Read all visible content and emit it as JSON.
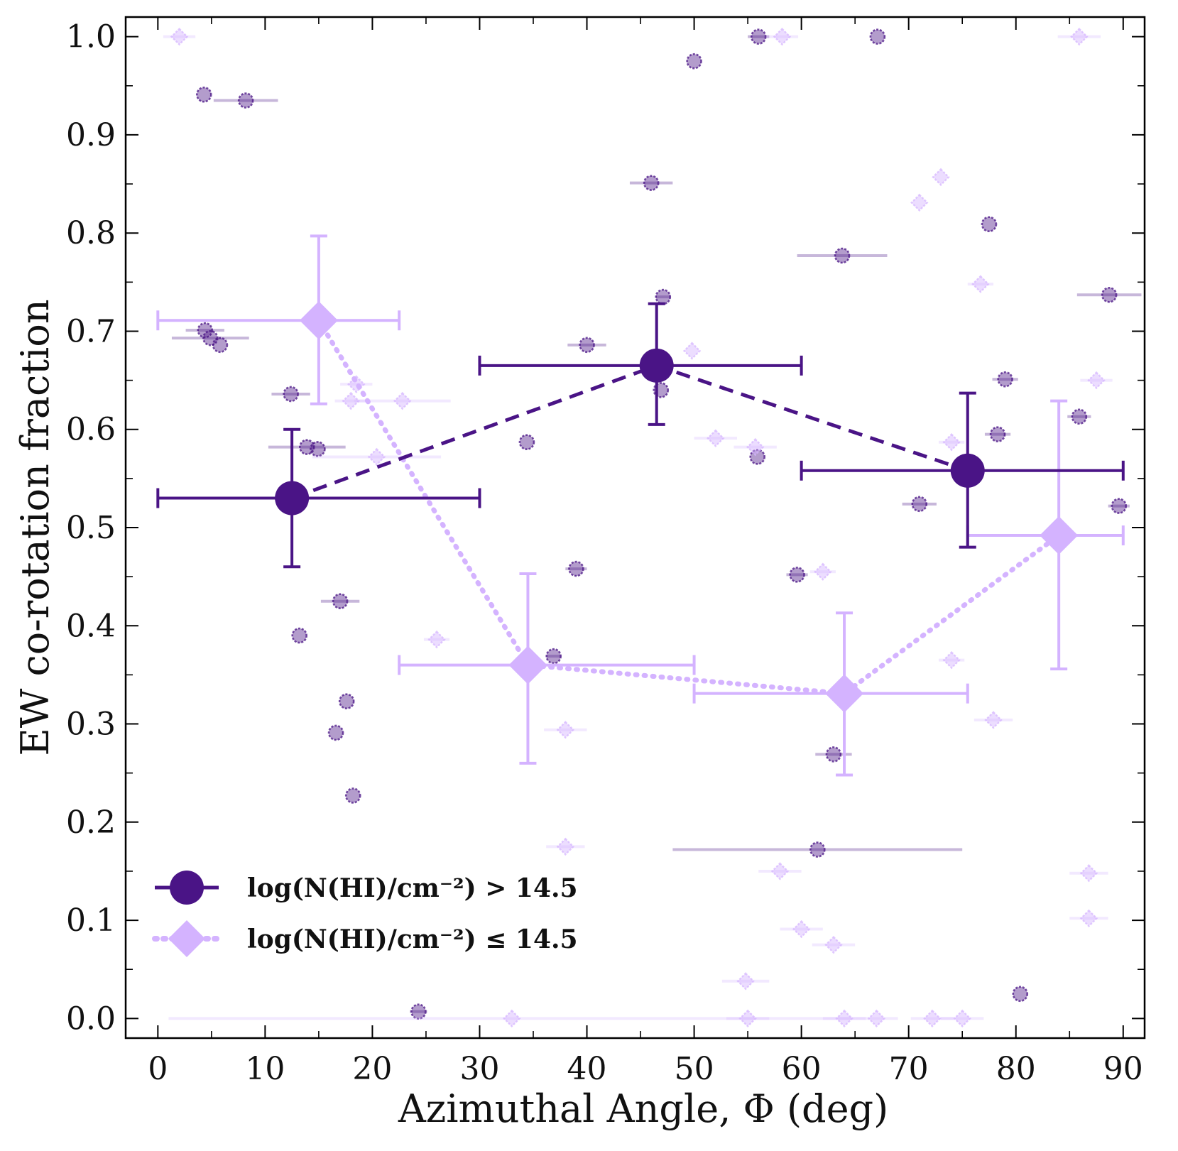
{
  "chart_data": {
    "type": "scatter",
    "xlabel": "Azimuthal Angle, Φ (deg)",
    "ylabel": "EW co-rotation fraction",
    "xlim": [
      -3,
      92
    ],
    "ylim": [
      -0.02,
      1.02
    ],
    "x_ticks": [
      0,
      10,
      20,
      30,
      40,
      50,
      60,
      70,
      80,
      90
    ],
    "x_tick_labels": [
      "0",
      "10",
      "20",
      "30",
      "40",
      "50",
      "60",
      "70",
      "80",
      "90"
    ],
    "y_ticks": [
      0.0,
      0.1,
      0.2,
      0.3,
      0.4,
      0.5,
      0.6,
      0.7,
      0.8,
      0.9,
      1.0
    ],
    "y_tick_labels": [
      "0.0",
      "0.1",
      "0.2",
      "0.3",
      "0.4",
      "0.5",
      "0.6",
      "0.7",
      "0.8",
      "0.9",
      "1.0"
    ],
    "legend_position": "lower-left",
    "colors": {
      "high": "#4a1486",
      "low": "#d4b3ff"
    },
    "series": [
      {
        "name": "high",
        "label": "log(N(HI)/cm⁻²) > 14.5",
        "marker": "circle",
        "line_style": "dashed",
        "binned": [
          {
            "x": 12.5,
            "xerr": [
              12.5,
              17.5
            ],
            "y": 0.53,
            "yerr": [
              0.07,
              0.07
            ]
          },
          {
            "x": 46.5,
            "xerr": [
              16.5,
              13.5
            ],
            "y": 0.665,
            "yerr": [
              0.06,
              0.063
            ]
          },
          {
            "x": 75.5,
            "xerr": [
              15.5,
              14.5
            ],
            "y": 0.558,
            "yerr": [
              0.078,
              0.079
            ]
          }
        ],
        "points": [
          {
            "x": 4.3,
            "y": 0.941,
            "xerr": 0
          },
          {
            "x": 8.2,
            "y": 0.935,
            "xerr": 3.0
          },
          {
            "x": 4.4,
            "y": 0.701,
            "xerr": 1.8
          },
          {
            "x": 4.9,
            "y": 0.693,
            "xerr": 3.6
          },
          {
            "x": 5.8,
            "y": 0.686,
            "xerr": 0
          },
          {
            "x": 12.4,
            "y": 0.636,
            "xerr": 1.8
          },
          {
            "x": 13.9,
            "y": 0.582,
            "xerr": 3.6
          },
          {
            "x": 14.9,
            "y": 0.58,
            "xerr": 0
          },
          {
            "x": 17.0,
            "y": 0.425,
            "xerr": 1.8
          },
          {
            "x": 13.2,
            "y": 0.39,
            "xerr": 0
          },
          {
            "x": 17.6,
            "y": 0.323,
            "xerr": 0
          },
          {
            "x": 16.6,
            "y": 0.291,
            "xerr": 0
          },
          {
            "x": 18.2,
            "y": 0.227,
            "xerr": 0
          },
          {
            "x": 24.3,
            "y": 0.007,
            "xerr": 0.8
          },
          {
            "x": 34.4,
            "y": 0.587,
            "xerr": 0
          },
          {
            "x": 40.0,
            "y": 0.686,
            "xerr": 1.8
          },
          {
            "x": 39.0,
            "y": 0.458,
            "xerr": 1.0
          },
          {
            "x": 36.9,
            "y": 0.369,
            "xerr": 0.7
          },
          {
            "x": 46.0,
            "y": 0.851,
            "xerr": 2.0
          },
          {
            "x": 47.1,
            "y": 0.735,
            "xerr": 0.7
          },
          {
            "x": 46.9,
            "y": 0.64,
            "xerr": 0
          },
          {
            "x": 50.0,
            "y": 0.975,
            "xerr": 0
          },
          {
            "x": 56.0,
            "y": 1.0,
            "xerr": 1.0
          },
          {
            "x": 67.1,
            "y": 1.0,
            "xerr": 0
          },
          {
            "x": 55.9,
            "y": 0.572,
            "xerr": 0
          },
          {
            "x": 59.6,
            "y": 0.452,
            "xerr": 1.0
          },
          {
            "x": 63.8,
            "y": 0.777,
            "xerr": 4.2
          },
          {
            "x": 71.0,
            "y": 0.524,
            "xerr": 1.6
          },
          {
            "x": 63.0,
            "y": 0.269,
            "xerr": 1.7
          },
          {
            "x": 61.5,
            "y": 0.172,
            "xerr": 13.5
          },
          {
            "x": 77.5,
            "y": 0.809,
            "xerr": 0
          },
          {
            "x": 79.0,
            "y": 0.651,
            "xerr": 1.2
          },
          {
            "x": 78.3,
            "y": 0.595,
            "xerr": 1.2
          },
          {
            "x": 80.4,
            "y": 0.025,
            "xerr": 0
          },
          {
            "x": 85.9,
            "y": 0.613,
            "xerr": 1.1
          },
          {
            "x": 88.7,
            "y": 0.737,
            "xerr": 3.0
          },
          {
            "x": 89.6,
            "y": 0.522,
            "xerr": 1.0
          }
        ]
      },
      {
        "name": "low",
        "label": "log(N(HI)/cm⁻²) ≤ 14.5",
        "marker": "diamond",
        "line_style": "dotted",
        "binned": [
          {
            "x": 15.0,
            "xerr": [
              15.0,
              7.5
            ],
            "y": 0.711,
            "yerr": [
              0.085,
              0.086
            ]
          },
          {
            "x": 34.5,
            "xerr": [
              12.0,
              15.5
            ],
            "y": 0.36,
            "yerr": [
              0.1,
              0.093
            ]
          },
          {
            "x": 64.0,
            "xerr": [
              14.0,
              11.5
            ],
            "y": 0.331,
            "yerr": [
              0.083,
              0.082
            ]
          },
          {
            "x": 84.0,
            "xerr": [
              8.5,
              6.0
            ],
            "y": 0.492,
            "yerr": [
              0.136,
              0.137
            ]
          }
        ],
        "points": [
          {
            "x": 2.0,
            "y": 1.0,
            "xerr": 1.5
          },
          {
            "x": 18.5,
            "y": 0.646,
            "xerr": 1.5
          },
          {
            "x": 18.0,
            "y": 0.629,
            "xerr": 1.5
          },
          {
            "x": 22.8,
            "y": 0.629,
            "xerr": 4.5
          },
          {
            "x": 20.4,
            "y": 0.572,
            "xerr": 6.0
          },
          {
            "x": 26.0,
            "y": 0.386,
            "xerr": 1.2
          },
          {
            "x": 33.0,
            "y": 0.0,
            "xerr": 32.0
          },
          {
            "x": 38.0,
            "y": 0.294,
            "xerr": 2.0
          },
          {
            "x": 38.0,
            "y": 0.175,
            "xerr": 1.8
          },
          {
            "x": 49.8,
            "y": 0.68,
            "xerr": 0
          },
          {
            "x": 52.0,
            "y": 0.591,
            "xerr": 2.0
          },
          {
            "x": 55.7,
            "y": 0.582,
            "xerr": 2.0
          },
          {
            "x": 58.2,
            "y": 1.0,
            "xerr": 1.5
          },
          {
            "x": 62.0,
            "y": 0.455,
            "xerr": 1.2
          },
          {
            "x": 58.0,
            "y": 0.15,
            "xerr": 2.0
          },
          {
            "x": 60.0,
            "y": 0.091,
            "xerr": 2.0
          },
          {
            "x": 63.0,
            "y": 0.075,
            "xerr": 2.0
          },
          {
            "x": 54.8,
            "y": 0.038,
            "xerr": 2.2
          },
          {
            "x": 55.0,
            "y": 0.0,
            "xerr": 2.0
          },
          {
            "x": 64.0,
            "y": 0.0,
            "xerr": 2.0
          },
          {
            "x": 67.0,
            "y": 0.0,
            "xerr": 2.0
          },
          {
            "x": 72.2,
            "y": 0.0,
            "xerr": 2.0
          },
          {
            "x": 75.0,
            "y": 0.0,
            "xerr": 2.0
          },
          {
            "x": 71.0,
            "y": 0.831,
            "xerr": 0
          },
          {
            "x": 73.0,
            "y": 0.857,
            "xerr": 0
          },
          {
            "x": 76.7,
            "y": 0.748,
            "xerr": 1.2
          },
          {
            "x": 74.0,
            "y": 0.587,
            "xerr": 1.2
          },
          {
            "x": 74.0,
            "y": 0.365,
            "xerr": 1.2
          },
          {
            "x": 77.9,
            "y": 0.304,
            "xerr": 1.8
          },
          {
            "x": 85.9,
            "y": 1.0,
            "xerr": 2.0
          },
          {
            "x": 87.5,
            "y": 0.65,
            "xerr": 1.5
          },
          {
            "x": 86.8,
            "y": 0.148,
            "xerr": 1.8
          },
          {
            "x": 86.8,
            "y": 0.102,
            "xerr": 1.8
          }
        ]
      }
    ]
  }
}
